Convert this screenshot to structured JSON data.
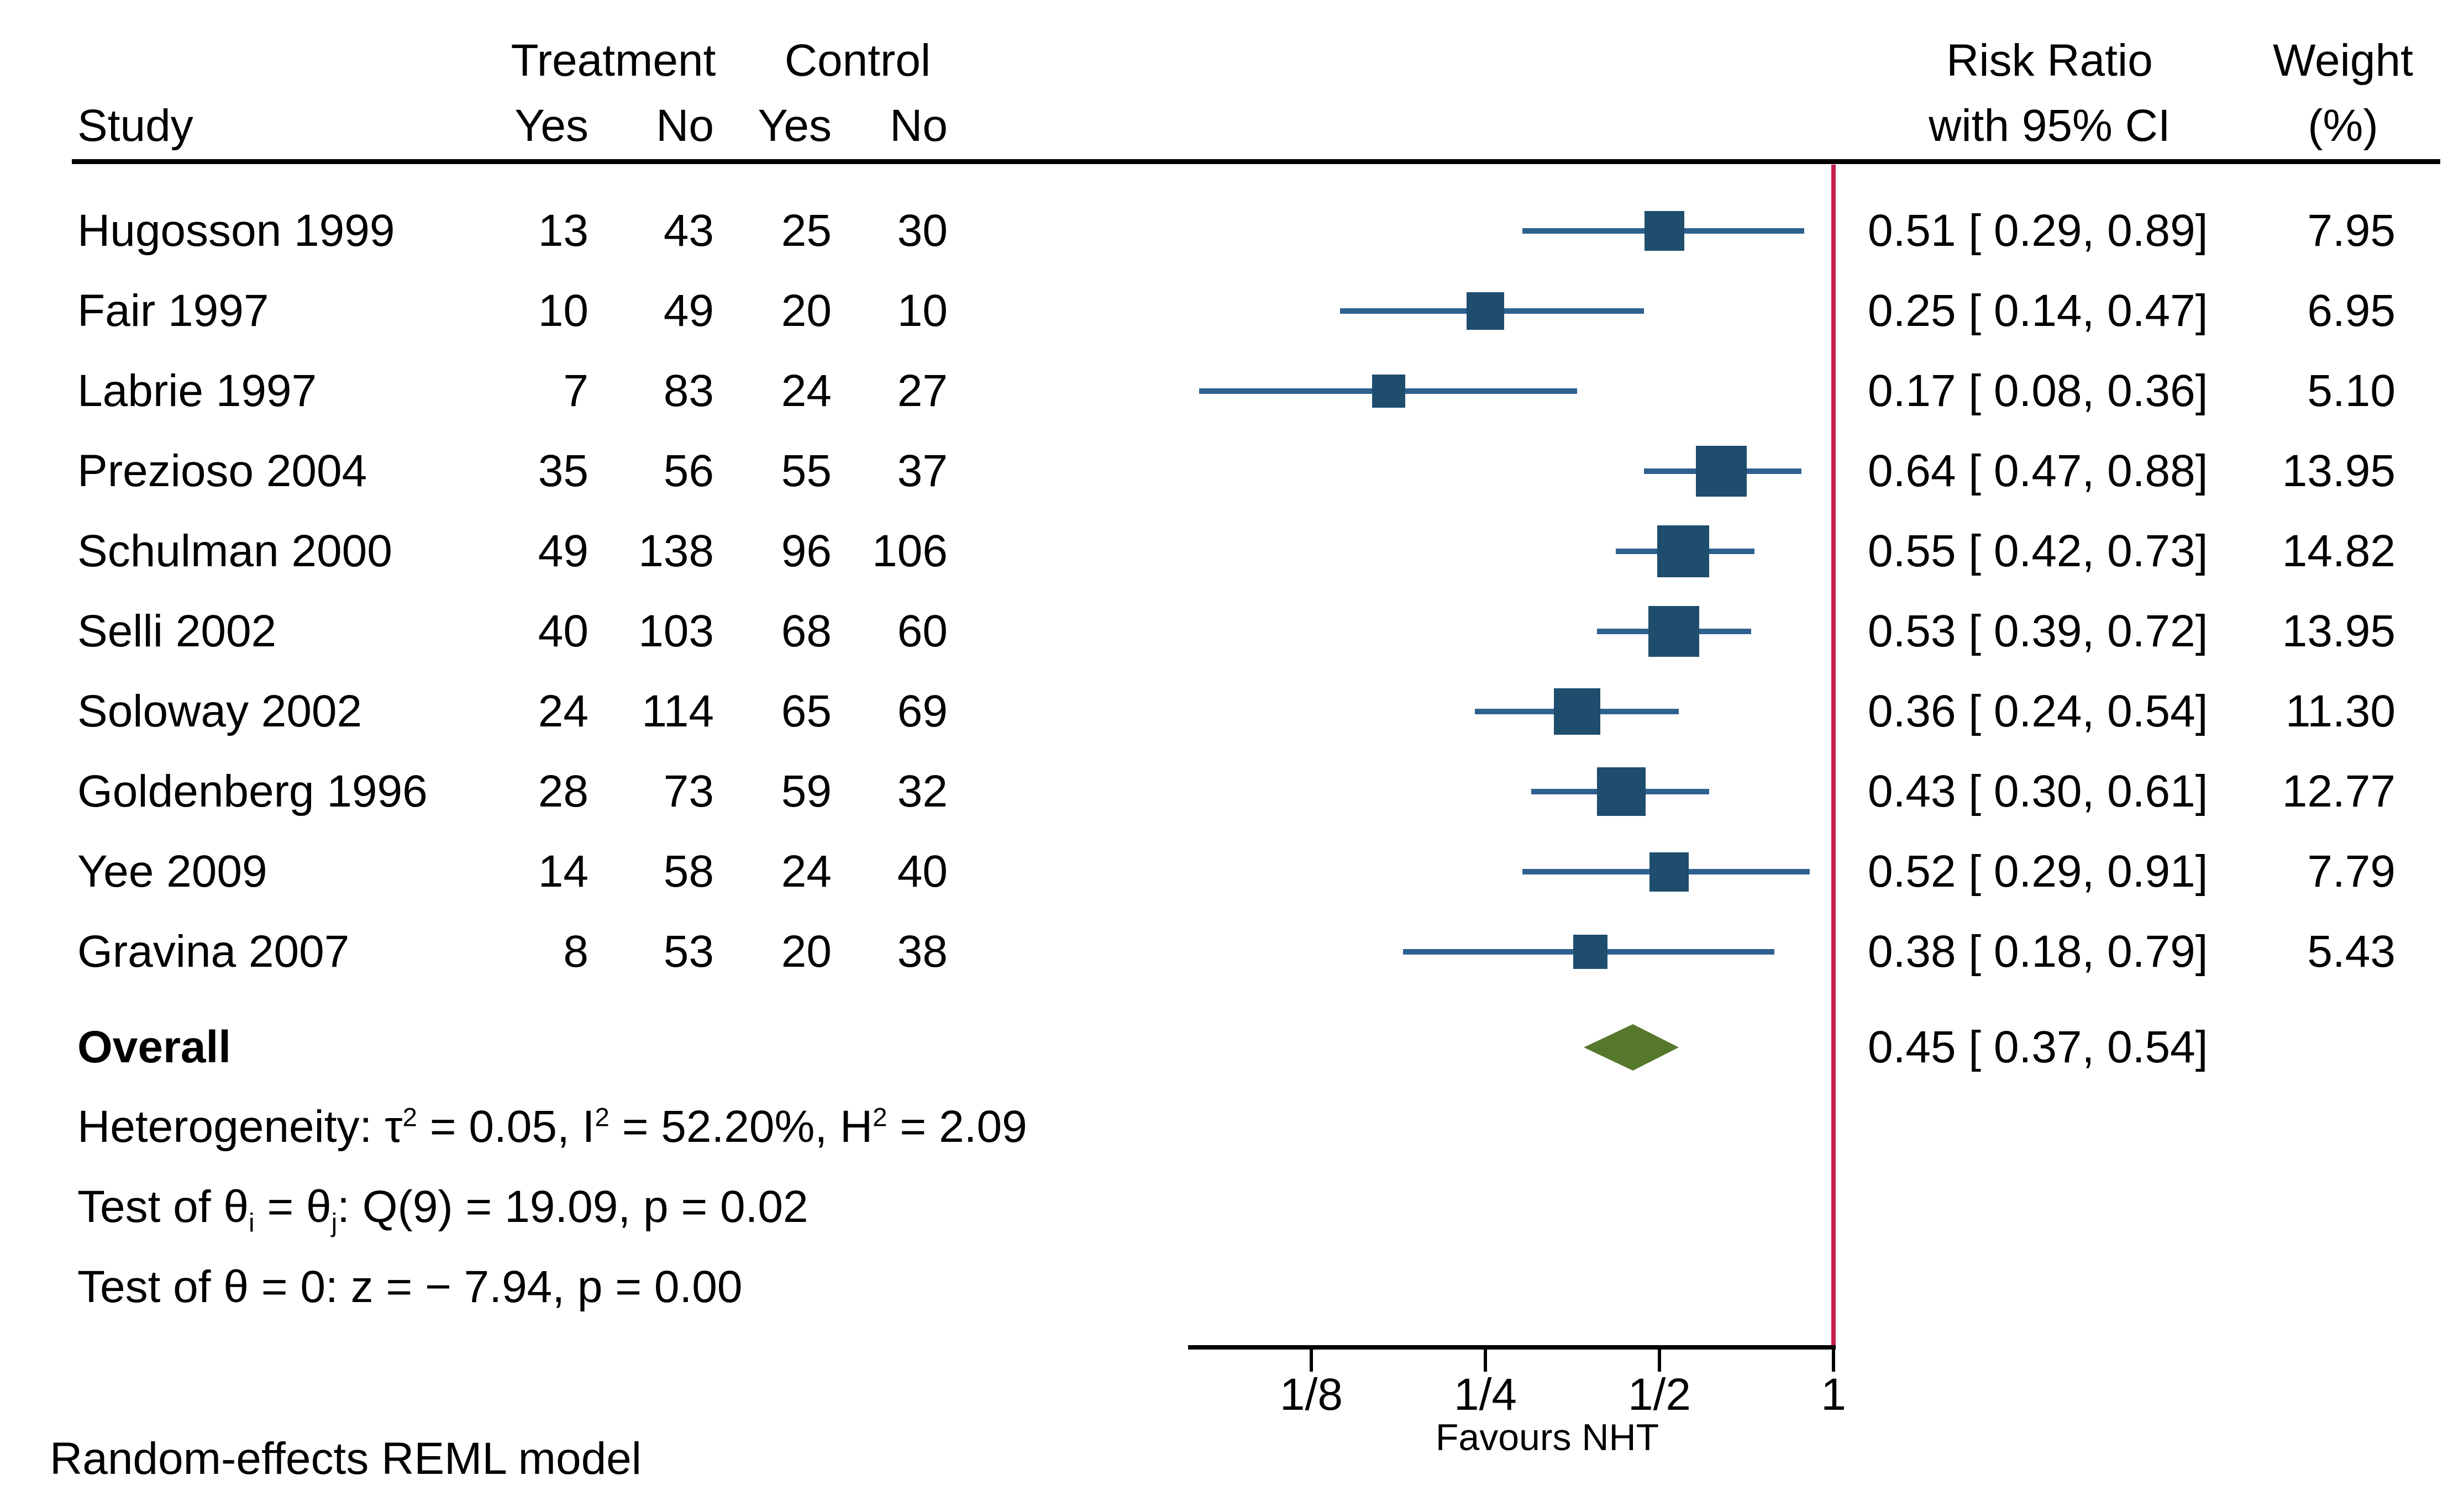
{
  "header": {
    "study": "Study",
    "treatment": "Treatment",
    "control": "Control",
    "yes": "Yes",
    "no": "No",
    "risk_ratio_line1": "Risk Ratio",
    "risk_ratio_line2": "with 95% CI",
    "weight_line1": "Weight",
    "weight_line2": "(%)"
  },
  "chart_data": {
    "type": "forest",
    "x_scale": "log2",
    "x_range": [
      0.08,
      1
    ],
    "reference_value": 1,
    "x_ticks": [
      {
        "label": "1/8",
        "value": 0.125
      },
      {
        "label": "1/4",
        "value": 0.25
      },
      {
        "label": "1/2",
        "value": 0.5
      },
      {
        "label": "1",
        "value": 1
      }
    ],
    "favours_label": "Favours NHT",
    "studies": [
      {
        "name": "Hugosson 1999",
        "t_yes": 13,
        "t_no": 43,
        "c_yes": 25,
        "c_no": 30,
        "rr": 0.51,
        "ci_low": 0.29,
        "ci_high": 0.89,
        "rr_text": "0.51 [ 0.29, 0.89]",
        "weight": 7.95,
        "weight_text": "7.95"
      },
      {
        "name": "Fair 1997",
        "t_yes": 10,
        "t_no": 49,
        "c_yes": 20,
        "c_no": 10,
        "rr": 0.25,
        "ci_low": 0.14,
        "ci_high": 0.47,
        "rr_text": "0.25 [ 0.14, 0.47]",
        "weight": 6.95,
        "weight_text": "6.95"
      },
      {
        "name": "Labrie 1997",
        "t_yes": 7,
        "t_no": 83,
        "c_yes": 24,
        "c_no": 27,
        "rr": 0.17,
        "ci_low": 0.08,
        "ci_high": 0.36,
        "rr_text": "0.17 [ 0.08, 0.36]",
        "weight": 5.1,
        "weight_text": "5.10"
      },
      {
        "name": "Prezioso 2004",
        "t_yes": 35,
        "t_no": 56,
        "c_yes": 55,
        "c_no": 37,
        "rr": 0.64,
        "ci_low": 0.47,
        "ci_high": 0.88,
        "rr_text": "0.64 [ 0.47, 0.88]",
        "weight": 13.95,
        "weight_text": "13.95"
      },
      {
        "name": "Schulman 2000",
        "t_yes": 49,
        "t_no": 138,
        "c_yes": 96,
        "c_no": 106,
        "rr": 0.55,
        "ci_low": 0.42,
        "ci_high": 0.73,
        "rr_text": "0.55 [ 0.42, 0.73]",
        "weight": 14.82,
        "weight_text": "14.82"
      },
      {
        "name": "Selli 2002",
        "t_yes": 40,
        "t_no": 103,
        "c_yes": 68,
        "c_no": 60,
        "rr": 0.53,
        "ci_low": 0.39,
        "ci_high": 0.72,
        "rr_text": "0.53 [ 0.39, 0.72]",
        "weight": 13.95,
        "weight_text": "13.95"
      },
      {
        "name": "Soloway 2002",
        "t_yes": 24,
        "t_no": 114,
        "c_yes": 65,
        "c_no": 69,
        "rr": 0.36,
        "ci_low": 0.24,
        "ci_high": 0.54,
        "rr_text": "0.36 [ 0.24, 0.54]",
        "weight": 11.3,
        "weight_text": "11.30"
      },
      {
        "name": "Goldenberg 1996",
        "t_yes": 28,
        "t_no": 73,
        "c_yes": 59,
        "c_no": 32,
        "rr": 0.43,
        "ci_low": 0.3,
        "ci_high": 0.61,
        "rr_text": "0.43 [ 0.30, 0.61]",
        "weight": 12.77,
        "weight_text": "12.77"
      },
      {
        "name": "Yee 2009",
        "t_yes": 14,
        "t_no": 58,
        "c_yes": 24,
        "c_no": 40,
        "rr": 0.52,
        "ci_low": 0.29,
        "ci_high": 0.91,
        "rr_text": "0.52 [ 0.29, 0.91]",
        "weight": 7.79,
        "weight_text": "7.79"
      },
      {
        "name": "Gravina 2007",
        "t_yes": 8,
        "t_no": 53,
        "c_yes": 20,
        "c_no": 38,
        "rr": 0.38,
        "ci_low": 0.18,
        "ci_high": 0.79,
        "rr_text": "0.38 [ 0.18, 0.79]",
        "weight": 5.43,
        "weight_text": "5.43"
      }
    ],
    "overall": {
      "label": "Overall",
      "rr": 0.45,
      "ci_low": 0.37,
      "ci_high": 0.54,
      "rr_text": "0.45 [ 0.37, 0.54]"
    }
  },
  "stats": {
    "heterogeneity": [
      {
        "t": "Heterogeneity: τ"
      },
      {
        "t": "2",
        "s": "sup"
      },
      {
        "t": " = 0.05, I"
      },
      {
        "t": "2",
        "s": "sup"
      },
      {
        "t": " = 52.20%, H"
      },
      {
        "t": "2",
        "s": "sup"
      },
      {
        "t": " = 2.09"
      }
    ],
    "test_theta_ij": [
      {
        "t": "Test of θ"
      },
      {
        "t": "i",
        "s": "sub"
      },
      {
        "t": " = θ"
      },
      {
        "t": "j",
        "s": "sub"
      },
      {
        "t": ": Q(9) = 19.09, p = 0.02"
      }
    ],
    "test_theta_zero": [
      {
        "t": "Test of θ = 0: z = − 7.94, p = 0.00"
      }
    ]
  },
  "footer": {
    "model_note": "Random-effects REML model"
  },
  "colors": {
    "marker": "#1e4d6e",
    "ci_line": "#2f6190",
    "diamond": "#56782d",
    "reference_line": "#c5204d",
    "text": "#000000"
  }
}
